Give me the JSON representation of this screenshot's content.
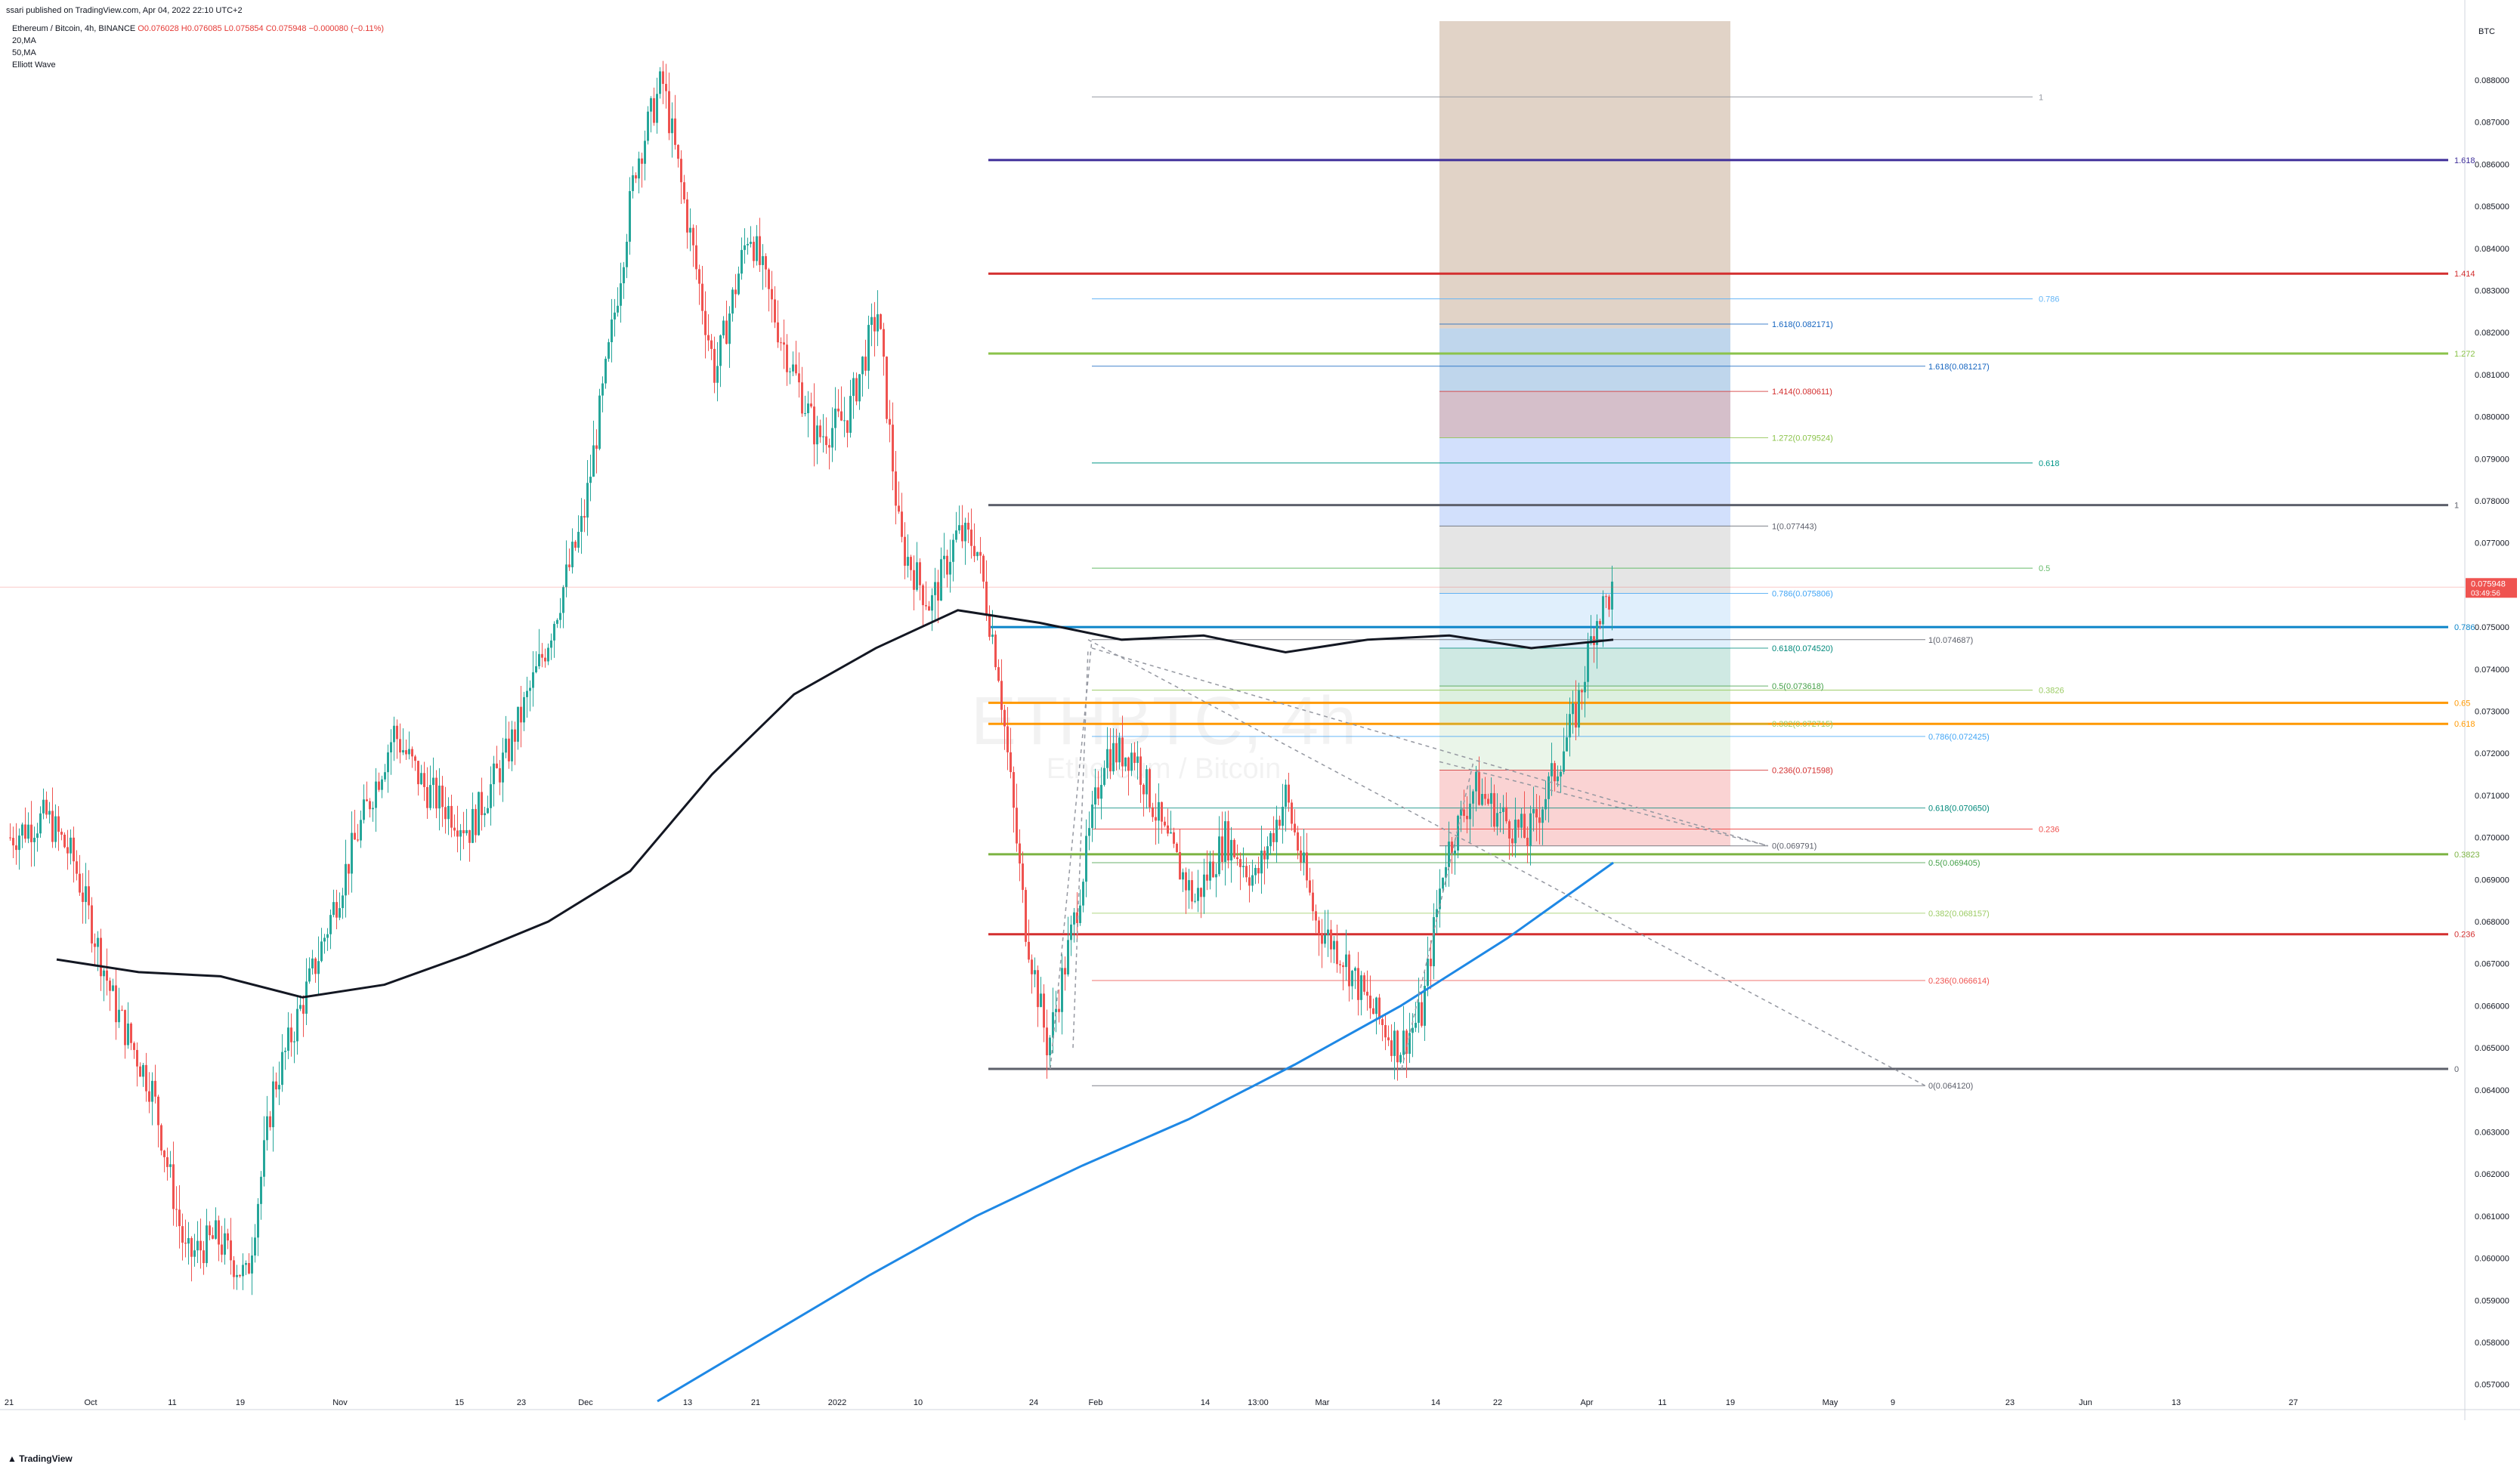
{
  "header": {
    "published": "ssari published on TradingView.com, Apr 04, 2022 22:10 UTC+2",
    "symbol_line": "Ethereum / Bitcoin, 4h, BINANCE",
    "ohlc": "O0.076028 H0.076085 L0.075854 C0.075948 −0.000080 (−0.11%)",
    "indicators": [
      "20,MA",
      "50,MA",
      "Elliott Wave"
    ]
  },
  "footer": {
    "logo_icon": "tradingview-logo-icon",
    "brand": "TradingView"
  },
  "chart_data": {
    "type": "candlestick",
    "y_axis": {
      "currency": "BTC",
      "ticks": [
        "0.088000",
        "0.087000",
        "0.086000",
        "0.085000",
        "0.084000",
        "0.083000",
        "0.082000",
        "0.081000",
        "0.080000",
        "0.079000",
        "0.078000",
        "0.077000",
        "0.076000",
        "0.075000",
        "0.074000",
        "0.073000",
        "0.072000",
        "0.071000",
        "0.070000",
        "0.069000",
        "0.068000",
        "0.067000",
        "0.066000",
        "0.065000",
        "0.064000",
        "0.063000",
        "0.062000",
        "0.061000",
        "0.060000",
        "0.059000",
        "0.058000",
        "0.057000"
      ],
      "range": [
        0.0566,
        0.0894
      ],
      "last_price": "0.075948",
      "countdown": "03:49:56"
    },
    "x_axis": {
      "ticks": [
        "21",
        "Oct",
        "11",
        "19",
        "Nov",
        "15",
        "23",
        "Dec",
        "13",
        "21",
        "2022",
        "10",
        "24",
        "Feb",
        "14",
        "13:00",
        "Mar",
        "14",
        "22",
        "Apr",
        "11",
        "19",
        "May",
        "9",
        "23",
        "Jun",
        "13",
        "27"
      ]
    },
    "price_series_ohlc_sample": {
      "last": {
        "open": 0.076028,
        "high": 0.076085,
        "low": 0.075854,
        "close": 0.075948
      }
    },
    "key_points": [
      {
        "label": "Sep 21",
        "y": 0.0705
      },
      {
        "label": "Oct 19",
        "y": 0.0595
      },
      {
        "label": "Dec 09",
        "y": 0.0883
      },
      {
        "label": "Jan 03",
        "y": 0.0828
      },
      {
        "label": "Jan 19",
        "y": 0.0778
      },
      {
        "label": "Jan 24",
        "y": 0.0645
      },
      {
        "label": "Feb 05",
        "y": 0.0743
      },
      {
        "label": "Mar 08",
        "y": 0.0645
      },
      {
        "label": "Mar 20",
        "y": 0.0718
      },
      {
        "label": "Mar 28",
        "y": 0.0705
      },
      {
        "label": "Apr 04",
        "y": 0.0759
      }
    ],
    "ma_black": [
      0.0671,
      0.0668,
      0.0667,
      0.0662,
      0.0665,
      0.0672,
      0.068,
      0.0692,
      0.0715,
      0.0734,
      0.0745,
      0.0754,
      0.0751,
      0.0747,
      0.0748,
      0.0744,
      0.0747,
      0.0748,
      0.0745,
      0.0747
    ],
    "ma_blue": [
      0.0566,
      0.0581,
      0.0596,
      0.061,
      0.0622,
      0.0633,
      0.0646,
      0.066,
      0.0676,
      0.0694
    ],
    "fib_extension_major": [
      {
        "level": "1.618",
        "price": 0.0861,
        "color": "#3f2f9a"
      },
      {
        "level": "1.414",
        "price": 0.0834,
        "color": "#d32f2f"
      },
      {
        "level": "1.272",
        "price": 0.0815,
        "color": "#8bc34a"
      },
      {
        "level": "1",
        "price": 0.0779,
        "color": "#5d606b"
      },
      {
        "level": "0.786",
        "price": 0.075,
        "color": "#0b84c9"
      },
      {
        "level": "0.65",
        "price": 0.0732,
        "color": "#ff9800"
      },
      {
        "level": "0.618",
        "price": 0.0727,
        "color": "#ff9800"
      },
      {
        "level": "0.3823",
        "price": 0.0696,
        "color": "#7cb342"
      },
      {
        "level": "0.236",
        "price": 0.0677,
        "color": "#d32f2f"
      },
      {
        "level": "0",
        "price": 0.0645,
        "color": "#5d606b"
      }
    ],
    "fib_thin_upper": [
      {
        "level": "1",
        "price": 0.0876,
        "color": "#9598a1"
      },
      {
        "level": "0.786",
        "price": 0.0828,
        "color": "#64b5f6"
      },
      {
        "level": "0.618",
        "price": 0.0789,
        "color": "#009688"
      },
      {
        "level": "0.5",
        "price": 0.0764,
        "color": "#66bb6a"
      },
      {
        "level": "0.3826",
        "price": 0.0735,
        "color": "#9ccc65"
      },
      {
        "level": "0.236",
        "price": 0.0702,
        "color": "#ef5350"
      }
    ],
    "fib_box_labels": [
      {
        "text": "1.618(0.082171)",
        "price": 0.0822,
        "color": "#1565c0"
      },
      {
        "text": "1.618(0.081217)",
        "price": 0.0812,
        "color": "#1565c0"
      },
      {
        "text": "1.414(0.080611)",
        "price": 0.0806,
        "color": "#d32f2f"
      },
      {
        "text": "1.272(0.079524)",
        "price": 0.0795,
        "color": "#8bc34a"
      },
      {
        "text": "1(0.077443)",
        "price": 0.0774,
        "color": "#5d606b"
      },
      {
        "text": "0.786(0.075806)",
        "price": 0.0758,
        "color": "#42a5f5"
      },
      {
        "text": "1(0.074687)",
        "price": 0.0747,
        "color": "#5d606b"
      },
      {
        "text": "0.618(0.074520)",
        "price": 0.0745,
        "color": "#00897b"
      },
      {
        "text": "0.5(0.073618)",
        "price": 0.0736,
        "color": "#43a047"
      },
      {
        "text": "0.786(0.072425)",
        "price": 0.0724,
        "color": "#42a5f5"
      },
      {
        "text": "0.382(0.072715)",
        "price": 0.0727,
        "color": "#9ccc65"
      },
      {
        "text": "0.236(0.071598)",
        "price": 0.0716,
        "color": "#d32f2f"
      },
      {
        "text": "0.618(0.070650)",
        "price": 0.0707,
        "color": "#00897b"
      },
      {
        "text": "0(0.069791)",
        "price": 0.0698,
        "color": "#5d606b"
      },
      {
        "text": "0.5(0.069405)",
        "price": 0.0694,
        "color": "#43a047"
      },
      {
        "text": "0.382(0.068157)",
        "price": 0.0682,
        "color": "#9ccc65"
      },
      {
        "text": "0.236(0.066614)",
        "price": 0.0666,
        "color": "#ef5350"
      },
      {
        "text": "0(0.064120)",
        "price": 0.0641,
        "color": "#5d606b"
      }
    ],
    "zones": [
      {
        "name": "tan",
        "from": 0.0894,
        "to": 0.0821,
        "color": "#d7c4b4"
      },
      {
        "name": "light-blue",
        "from": 0.0821,
        "to": 0.0806,
        "color": "#aac8e6"
      },
      {
        "name": "mauve",
        "from": 0.0806,
        "to": 0.0795,
        "color": "#c7aab8"
      },
      {
        "name": "blue",
        "from": 0.0795,
        "to": 0.0774,
        "color": "#c3d6fb"
      },
      {
        "name": "grey",
        "from": 0.0774,
        "to": 0.0758,
        "color": "#dcdcdc"
      },
      {
        "name": "pale-blue",
        "from": 0.0758,
        "to": 0.0745,
        "color": "#d6e9fb"
      },
      {
        "name": "teal",
        "from": 0.0745,
        "to": 0.0736,
        "color": "#bfe2da"
      },
      {
        "name": "light-green",
        "from": 0.0736,
        "to": 0.0727,
        "color": "#d2ebd5"
      },
      {
        "name": "pale-green",
        "from": 0.0727,
        "to": 0.0716,
        "color": "#e3f2e2"
      },
      {
        "name": "red",
        "from": 0.0716,
        "to": 0.0698,
        "color": "#f8c4c4"
      }
    ],
    "watermark": [
      "ETHBTC, 4h",
      "Ethereum / Bitcoin"
    ],
    "colors": {
      "up": "#26a69a",
      "down": "#ef5350",
      "ma_black": "#131722",
      "ma_blue": "#1e88e5",
      "price_tag": "#ef5350"
    }
  }
}
